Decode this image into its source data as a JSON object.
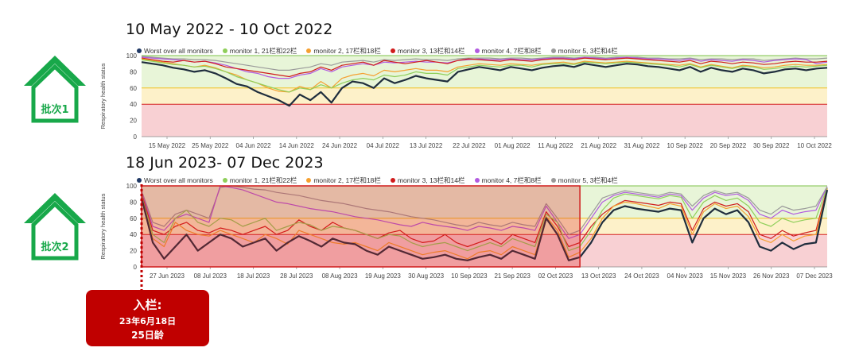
{
  "colors": {
    "worst": "#1f2d3d",
    "m1": "#8fcf5a",
    "m2": "#f5a030",
    "m3": "#d01c1c",
    "m4": "#b25be0",
    "m5": "#9a9a9a",
    "band_green": "#e8f5d8",
    "band_yellow": "#fdf1c9",
    "band_red": "#f8d0d3",
    "house": "#18a84a",
    "badge": "#c00000"
  },
  "legend": [
    {
      "key": "worst",
      "label": "Worst over all monitors",
      "color": "#1f3864"
    },
    {
      "key": "m1",
      "label": "monitor 1, 21栏和22栏",
      "color": "#8fcf5a"
    },
    {
      "key": "m2",
      "label": "monitor 2, 17栏和18栏",
      "color": "#f5a030"
    },
    {
      "key": "m3",
      "label": "monitor 3, 13栏和14栏",
      "color": "#d01c1c"
    },
    {
      "key": "m4",
      "label": "monitor 4, 7栏和8栏",
      "color": "#b25be0"
    },
    {
      "key": "m5",
      "label": "monitor 5, 3栏和4栏",
      "color": "#9a9a9a"
    }
  ],
  "batch1": {
    "label": "批次1"
  },
  "batch2": {
    "label": "批次2"
  },
  "entry_badge": {
    "line1": "入栏:",
    "line2": "23年6月18日",
    "line3": "25日龄"
  },
  "chart_data": [
    {
      "type": "line",
      "title": "10 May 2022 - 10 Oct 2022",
      "ylabel": "Respiratory health status",
      "xlabel": "",
      "ylim": [
        0,
        100
      ],
      "yticks": [
        0,
        20,
        40,
        60,
        80,
        100
      ],
      "xticks": [
        "15 May 2022",
        "25 May 2022",
        "04 Jun 2022",
        "14 Jun 2022",
        "24 Jun 2022",
        "04 Jul 2022",
        "13 Jul 2022",
        "22 Jul 2022",
        "01 Aug 2022",
        "11 Aug 2022",
        "21 Aug 2022",
        "31 Aug 2022",
        "10 Sep 2022",
        "20 Sep 2022",
        "30 Sep 2022",
        "10 Oct 2022"
      ],
      "bands": [
        {
          "from": 0,
          "to": 40,
          "color": "red"
        },
        {
          "from": 40,
          "to": 60,
          "color": "yellow"
        },
        {
          "from": 60,
          "to": 100,
          "color": "green"
        }
      ],
      "series": [
        {
          "name": "Worst over all monitors",
          "key": "worst",
          "values": [
            92,
            90,
            88,
            85,
            83,
            80,
            82,
            78,
            72,
            65,
            62,
            55,
            50,
            45,
            38,
            52,
            45,
            55,
            42,
            60,
            68,
            66,
            60,
            72,
            66,
            70,
            75,
            72,
            70,
            68,
            80,
            83,
            86,
            84,
            82,
            86,
            84,
            82,
            85,
            87,
            88,
            86,
            90,
            88,
            86,
            88,
            90,
            89,
            87,
            86,
            84,
            82,
            86,
            80,
            85,
            82,
            80,
            84,
            82,
            78,
            80,
            83,
            84,
            82,
            84,
            85
          ]
        },
        {
          "name": "monitor 1, 21栏和22栏",
          "key": "m1",
          "values": [
            95,
            93,
            91,
            89,
            88,
            86,
            87,
            84,
            80,
            74,
            70,
            66,
            62,
            58,
            55,
            60,
            58,
            64,
            60,
            66,
            70,
            72,
            70,
            76,
            74,
            76,
            80,
            78,
            78,
            76,
            84,
            86,
            88,
            87,
            86,
            88,
            88,
            86,
            89,
            90,
            90,
            89,
            92,
            91,
            90,
            91,
            92,
            91,
            90,
            89,
            88,
            86,
            89,
            85,
            88,
            86,
            84,
            87,
            86,
            83,
            84,
            86,
            87,
            86,
            87,
            88
          ]
        },
        {
          "name": "monitor 2, 17栏和18栏",
          "key": "m2",
          "values": [
            96,
            94,
            92,
            90,
            88,
            86,
            88,
            85,
            80,
            76,
            70,
            66,
            60,
            56,
            55,
            62,
            58,
            68,
            60,
            72,
            76,
            78,
            75,
            82,
            80,
            82,
            84,
            82,
            82,
            80,
            86,
            88,
            90,
            89,
            88,
            90,
            89,
            88,
            90,
            91,
            92,
            90,
            93,
            92,
            91,
            92,
            93,
            92,
            91,
            90,
            89,
            88,
            90,
            86,
            89,
            87,
            85,
            88,
            87,
            85,
            86,
            88,
            89,
            88,
            88,
            89
          ]
        },
        {
          "name": "monitor 3, 13栏和14栏",
          "key": "m3",
          "values": [
            97,
            95,
            93,
            92,
            94,
            92,
            93,
            90,
            86,
            84,
            82,
            80,
            78,
            76,
            74,
            78,
            80,
            86,
            82,
            88,
            90,
            92,
            88,
            94,
            92,
            90,
            92,
            94,
            92,
            90,
            94,
            96,
            95,
            94,
            93,
            95,
            94,
            93,
            95,
            96,
            96,
            95,
            97,
            96,
            95,
            96,
            97,
            96,
            95,
            94,
            93,
            92,
            94,
            90,
            93,
            92,
            90,
            92,
            91,
            89,
            90,
            92,
            93,
            92,
            92,
            93
          ]
        },
        {
          "name": "monitor 4, 7栏和8栏",
          "key": "m4",
          "values": [
            98,
            97,
            96,
            95,
            94,
            92,
            93,
            91,
            88,
            84,
            80,
            78,
            74,
            72,
            72,
            76,
            78,
            84,
            80,
            86,
            88,
            90,
            88,
            92,
            91,
            92,
            93,
            92,
            92,
            91,
            94,
            95,
            96,
            95,
            95,
            96,
            95,
            95,
            96,
            97,
            97,
            96,
            98,
            97,
            96,
            97,
            98,
            97,
            96,
            96,
            95,
            94,
            96,
            93,
            95,
            94,
            93,
            95,
            94,
            92,
            94,
            95,
            96,
            95,
            90,
            92
          ]
        },
        {
          "name": "monitor 5, 3栏和4栏",
          "key": "m5",
          "values": [
            99,
            98,
            97,
            96,
            96,
            95,
            95,
            94,
            92,
            90,
            88,
            86,
            84,
            82,
            82,
            84,
            86,
            90,
            88,
            92,
            93,
            94,
            92,
            95,
            94,
            95,
            96,
            95,
            95,
            94,
            96,
            97,
            97,
            97,
            96,
            97,
            97,
            96,
            97,
            98,
            98,
            97,
            98,
            98,
            97,
            98,
            98,
            98,
            97,
            97,
            96,
            96,
            97,
            95,
            96,
            96,
            95,
            96,
            96,
            94,
            95,
            96,
            97,
            96,
            96,
            97
          ]
        }
      ]
    },
    {
      "type": "line",
      "title": "18 Jun 2023- 07 Dec 2023",
      "ylabel": "Respiratory health status",
      "xlabel": "",
      "ylim": [
        0,
        100
      ],
      "yticks": [
        0,
        20,
        40,
        60,
        80,
        100
      ],
      "xticks": [
        "27 Jun 2023",
        "08 Jul 2023",
        "18 Jul 2023",
        "28 Jul 2023",
        "08 Aug 2023",
        "19 Aug 2023",
        "30 Aug 2023",
        "10 Sep 2023",
        "21 Sep 2023",
        "02 Oct 2023",
        "13 Oct 2023",
        "24 Oct 2023",
        "04 Nov 2023",
        "15 Nov 2023",
        "26 Nov 2023",
        "07 Dec 2023"
      ],
      "bands": [
        {
          "from": 0,
          "to": 40,
          "color": "red"
        },
        {
          "from": 40,
          "to": 60,
          "color": "yellow"
        },
        {
          "from": 60,
          "to": 100,
          "color": "green"
        }
      ],
      "highlight_region": {
        "from_index": 0,
        "to_index": 39
      },
      "series": [
        {
          "name": "Worst over all monitors",
          "key": "worst",
          "values": [
            85,
            30,
            10,
            25,
            40,
            20,
            30,
            40,
            35,
            25,
            30,
            35,
            20,
            30,
            38,
            32,
            25,
            35,
            30,
            28,
            20,
            15,
            25,
            20,
            15,
            10,
            12,
            15,
            10,
            8,
            12,
            15,
            10,
            20,
            15,
            10,
            60,
            40,
            8,
            12,
            30,
            55,
            70,
            75,
            72,
            70,
            68,
            72,
            70,
            30,
            60,
            72,
            65,
            70,
            55,
            25,
            20,
            30,
            22,
            28,
            30,
            95
          ]
        },
        {
          "name": "monitor 1, 21栏和22栏",
          "key": "m1",
          "values": [
            88,
            40,
            30,
            60,
            70,
            55,
            50,
            60,
            58,
            50,
            55,
            60,
            45,
            50,
            55,
            52,
            45,
            50,
            48,
            45,
            40,
            35,
            40,
            38,
            30,
            25,
            28,
            30,
            25,
            20,
            25,
            30,
            25,
            35,
            30,
            25,
            65,
            55,
            20,
            25,
            45,
            70,
            85,
            90,
            88,
            86,
            84,
            88,
            86,
            60,
            80,
            88,
            82,
            85,
            75,
            55,
            50,
            60,
            55,
            58,
            60,
            98
          ]
        },
        {
          "name": "monitor 2, 17栏和18栏",
          "key": "m2",
          "values": [
            86,
            35,
            25,
            55,
            45,
            40,
            38,
            45,
            40,
            35,
            30,
            40,
            35,
            28,
            45,
            40,
            35,
            30,
            28,
            30,
            25,
            20,
            30,
            25,
            20,
            15,
            18,
            20,
            15,
            10,
            18,
            20,
            15,
            25,
            20,
            15,
            62,
            45,
            12,
            18,
            35,
            60,
            75,
            80,
            78,
            75,
            72,
            78,
            75,
            40,
            68,
            78,
            72,
            75,
            62,
            35,
            30,
            40,
            32,
            38,
            40,
            96
          ]
        },
        {
          "name": "monitor 3, 13栏和14栏",
          "key": "m3",
          "values": [
            90,
            45,
            40,
            50,
            55,
            45,
            42,
            48,
            45,
            40,
            45,
            50,
            40,
            45,
            58,
            50,
            45,
            55,
            48,
            45,
            40,
            35,
            42,
            45,
            35,
            30,
            32,
            40,
            30,
            25,
            30,
            35,
            28,
            40,
            35,
            30,
            68,
            50,
            25,
            30,
            50,
            65,
            75,
            82,
            80,
            78,
            76,
            80,
            78,
            45,
            72,
            80,
            75,
            78,
            68,
            40,
            35,
            45,
            38,
            42,
            45,
            97
          ]
        },
        {
          "name": "monitor 4, 7栏和8栏",
          "key": "m4",
          "values": [
            92,
            50,
            45,
            60,
            65,
            60,
            55,
            100,
            98,
            95,
            90,
            85,
            80,
            78,
            75,
            72,
            70,
            68,
            65,
            62,
            60,
            58,
            55,
            52,
            50,
            55,
            52,
            50,
            48,
            45,
            50,
            48,
            45,
            50,
            48,
            45,
            75,
            55,
            35,
            40,
            60,
            80,
            88,
            92,
            90,
            88,
            86,
            90,
            88,
            70,
            85,
            92,
            88,
            90,
            82,
            65,
            60,
            70,
            65,
            68,
            70,
            99
          ]
        },
        {
          "name": "monitor 5, 3栏和4栏",
          "key": "m5",
          "values": [
            94,
            55,
            50,
            65,
            70,
            65,
            60,
            98,
            100,
            98,
            96,
            95,
            92,
            90,
            88,
            85,
            82,
            80,
            78,
            75,
            72,
            70,
            68,
            65,
            62,
            60,
            58,
            55,
            52,
            50,
            55,
            52,
            50,
            55,
            52,
            50,
            78,
            60,
            40,
            45,
            65,
            85,
            90,
            94,
            92,
            90,
            88,
            92,
            90,
            75,
            88,
            94,
            90,
            92,
            85,
            70,
            65,
            75,
            70,
            72,
            75,
            99
          ]
        }
      ]
    }
  ]
}
